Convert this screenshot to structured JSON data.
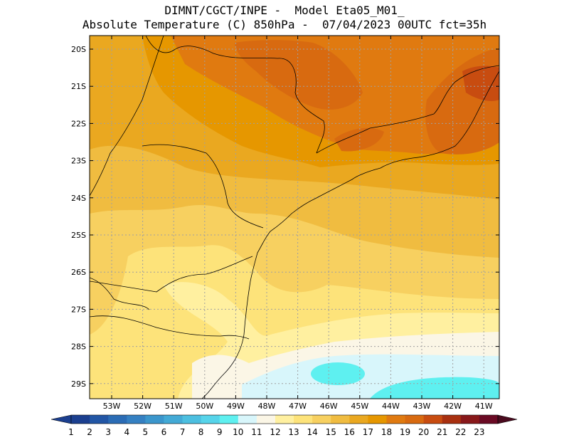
{
  "title": {
    "line1": "DIMNT/CGCT/INPE -  Model Eta05_M01_",
    "line2": "Absolute Temperature (C) 850hPa -  07/04/2023 00UTC fct=35h"
  },
  "map": {
    "lat_labels": [
      "20S",
      "21S",
      "22S",
      "23S",
      "24S",
      "25S",
      "26S",
      "27S",
      "28S",
      "29S"
    ],
    "lon_labels": [
      "53W",
      "52W",
      "51W",
      "50W",
      "49W",
      "48W",
      "47W",
      "46W",
      "45W",
      "44W",
      "43W",
      "42W",
      "41W"
    ],
    "gridlines": true,
    "gridline_color": "#a0a0a0"
  },
  "colorbar": {
    "labels": [
      "1",
      "2",
      "3",
      "4",
      "5",
      "6",
      "7",
      "8",
      "9",
      "10",
      "11",
      "12",
      "13",
      "14",
      "15",
      "16",
      "17",
      "18",
      "19",
      "20",
      "21",
      "22",
      "23"
    ],
    "colors": [
      "#1b3f8f",
      "#2256a5",
      "#2b6cb5",
      "#3580c2",
      "#3b96cc",
      "#43aad6",
      "#4cbfe0",
      "#56d4ea",
      "#5ef0f0",
      "#d8f6fb",
      "#fbf6e6",
      "#fff0a0",
      "#fde37a",
      "#f7d060",
      "#f0bc40",
      "#eaa820",
      "#e69700",
      "#e07a10",
      "#d86a10",
      "#c84c10",
      "#a83010",
      "#88181a",
      "#6a0a24"
    ],
    "arrow_left_color": "#1b3f8f",
    "arrow_right_color": "#4a0a1e"
  }
}
